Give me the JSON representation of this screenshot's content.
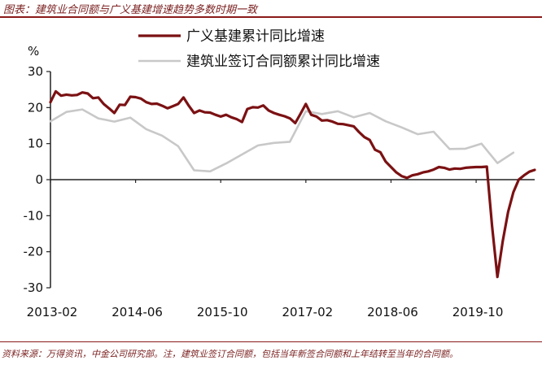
{
  "header": {
    "title": "图表：建筑业合同额与广义基建增速趋势多数时期一致"
  },
  "footer": {
    "note": "资料来源：万得资讯，中金公司研究部。注，建筑业签订合同额，包括当年新签合同额和上年结转至当年的合同额。"
  },
  "chart_data": {
    "type": "line",
    "unit_label": "%",
    "ylim": [
      -30,
      30
    ],
    "yticks": [
      30,
      20,
      10,
      0,
      -10,
      -20,
      -30
    ],
    "x_range": [
      "2013-02",
      "2020-09"
    ],
    "x_tick_labels": [
      "2013-02",
      "2014-06",
      "2015-10",
      "2017-02",
      "2018-06",
      "2019-10"
    ],
    "legend_placement": "top",
    "grid": false,
    "series": [
      {
        "name": "广义基建累计同比增速",
        "color": "#7b1113",
        "points": [
          [
            "2013-02",
            21.5
          ],
          [
            "2013-03",
            24.5
          ],
          [
            "2013-04",
            23.3
          ],
          [
            "2013-05",
            23.6
          ],
          [
            "2013-06",
            23.4
          ],
          [
            "2013-07",
            23.5
          ],
          [
            "2013-08",
            24.2
          ],
          [
            "2013-09",
            23.9
          ],
          [
            "2013-10",
            22.6
          ],
          [
            "2013-11",
            22.8
          ],
          [
            "2013-12",
            21.0
          ],
          [
            "2014-01",
            19.8
          ],
          [
            "2014-02",
            18.5
          ],
          [
            "2014-03",
            20.8
          ],
          [
            "2014-04",
            20.7
          ],
          [
            "2014-05",
            23.0
          ],
          [
            "2014-06",
            22.9
          ],
          [
            "2014-07",
            22.5
          ],
          [
            "2014-08",
            21.5
          ],
          [
            "2014-09",
            21.0
          ],
          [
            "2014-10",
            21.1
          ],
          [
            "2014-11",
            20.5
          ],
          [
            "2014-12",
            19.8
          ],
          [
            "2015-01",
            20.4
          ],
          [
            "2015-02",
            21.0
          ],
          [
            "2015-03",
            22.8
          ],
          [
            "2015-04",
            20.5
          ],
          [
            "2015-05",
            18.5
          ],
          [
            "2015-06",
            19.2
          ],
          [
            "2015-07",
            18.7
          ],
          [
            "2015-08",
            18.6
          ],
          [
            "2015-09",
            18.0
          ],
          [
            "2015-10",
            17.5
          ],
          [
            "2015-11",
            18.0
          ],
          [
            "2015-12",
            17.3
          ],
          [
            "2016-01",
            16.8
          ],
          [
            "2016-02",
            16.0
          ],
          [
            "2016-03",
            19.6
          ],
          [
            "2016-04",
            20.1
          ],
          [
            "2016-05",
            20.0
          ],
          [
            "2016-06",
            20.6
          ],
          [
            "2016-07",
            19.2
          ],
          [
            "2016-08",
            18.5
          ],
          [
            "2016-09",
            18.0
          ],
          [
            "2016-10",
            17.6
          ],
          [
            "2016-11",
            17.0
          ],
          [
            "2016-12",
            15.7
          ],
          [
            "2017-01",
            18.3
          ],
          [
            "2017-02",
            21.0
          ],
          [
            "2017-03",
            18.0
          ],
          [
            "2017-04",
            17.5
          ],
          [
            "2017-05",
            16.4
          ],
          [
            "2017-06",
            16.5
          ],
          [
            "2017-07",
            16.1
          ],
          [
            "2017-08",
            15.5
          ],
          [
            "2017-09",
            15.4
          ],
          [
            "2017-10",
            15.1
          ],
          [
            "2017-11",
            14.8
          ],
          [
            "2017-12",
            13.2
          ],
          [
            "2018-01",
            11.8
          ],
          [
            "2018-02",
            11.0
          ],
          [
            "2018-03",
            8.3
          ],
          [
            "2018-04",
            7.6
          ],
          [
            "2018-05",
            5.0
          ],
          [
            "2018-06",
            3.5
          ],
          [
            "2018-07",
            2.0
          ],
          [
            "2018-08",
            1.0
          ],
          [
            "2018-09",
            0.5
          ],
          [
            "2018-10",
            1.2
          ],
          [
            "2018-11",
            1.5
          ],
          [
            "2018-12",
            2.0
          ],
          [
            "2019-01",
            2.3
          ],
          [
            "2019-02",
            2.8
          ],
          [
            "2019-03",
            3.5
          ],
          [
            "2019-04",
            3.3
          ],
          [
            "2019-05",
            2.8
          ],
          [
            "2019-06",
            3.1
          ],
          [
            "2019-07",
            3.0
          ],
          [
            "2019-08",
            3.3
          ],
          [
            "2019-09",
            3.4
          ],
          [
            "2019-10",
            3.5
          ],
          [
            "2019-11",
            3.5
          ],
          [
            "2019-12",
            3.6
          ],
          [
            "2020-01",
            -13.0
          ],
          [
            "2020-02",
            -27.0
          ],
          [
            "2020-03",
            -17.0
          ],
          [
            "2020-04",
            -9.0
          ],
          [
            "2020-05",
            -3.5
          ],
          [
            "2020-06",
            0.0
          ],
          [
            "2020-07",
            1.2
          ],
          [
            "2020-08",
            2.2
          ],
          [
            "2020-09",
            2.7
          ]
        ]
      },
      {
        "name": "建筑业签订合同额累计同比增速",
        "color": "#c8c8c8",
        "points": [
          [
            "2013-02",
            16.2
          ],
          [
            "2013-05",
            18.8
          ],
          [
            "2013-08",
            19.5
          ],
          [
            "2013-11",
            17.0
          ],
          [
            "2014-02",
            16.1
          ],
          [
            "2014-05",
            17.2
          ],
          [
            "2014-08",
            14.0
          ],
          [
            "2014-11",
            12.2
          ],
          [
            "2015-02",
            9.3
          ],
          [
            "2015-05",
            2.6
          ],
          [
            "2015-08",
            2.3
          ],
          [
            "2015-11",
            4.5
          ],
          [
            "2016-02",
            7.0
          ],
          [
            "2016-05",
            9.5
          ],
          [
            "2016-08",
            10.2
          ],
          [
            "2016-11",
            10.5
          ],
          [
            "2017-02",
            19.0
          ],
          [
            "2017-05",
            18.2
          ],
          [
            "2017-08",
            19.0
          ],
          [
            "2017-11",
            17.3
          ],
          [
            "2018-02",
            18.5
          ],
          [
            "2018-05",
            16.2
          ],
          [
            "2018-08",
            14.5
          ],
          [
            "2018-11",
            12.6
          ],
          [
            "2019-02",
            13.3
          ],
          [
            "2019-05",
            8.5
          ],
          [
            "2019-08",
            8.6
          ],
          [
            "2019-11",
            10.0
          ],
          [
            "2020-02",
            4.6
          ],
          [
            "2020-05",
            7.5
          ]
        ]
      }
    ]
  }
}
